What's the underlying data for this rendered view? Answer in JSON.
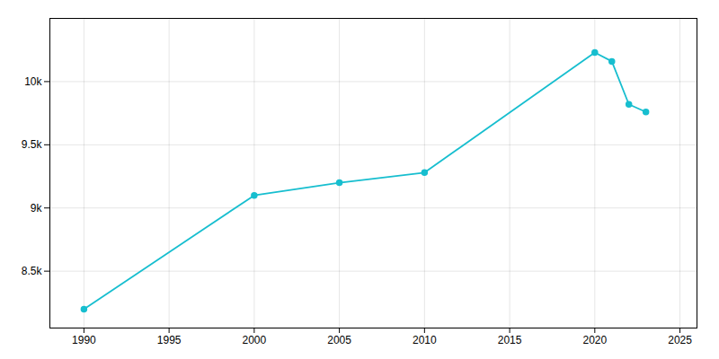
{
  "chart_data": {
    "type": "line",
    "x": [
      1990,
      2000,
      2005,
      2010,
      2020,
      2021,
      2022,
      2023
    ],
    "values": [
      8200,
      9100,
      9200,
      9280,
      10230,
      10160,
      9820,
      9760
    ],
    "color": "#17BECF",
    "marker": "circle",
    "xlim": [
      1988,
      2026
    ],
    "ylim": [
      8050,
      10500
    ],
    "xticks": [
      1990,
      1995,
      2000,
      2005,
      2010,
      2015,
      2020,
      2025
    ],
    "yticks": [
      {
        "value": 8500,
        "label": "8.5k"
      },
      {
        "value": 9000,
        "label": "9k"
      },
      {
        "value": 9500,
        "label": "9.5k"
      },
      {
        "value": 10000,
        "label": "10k"
      }
    ],
    "grid": true
  }
}
